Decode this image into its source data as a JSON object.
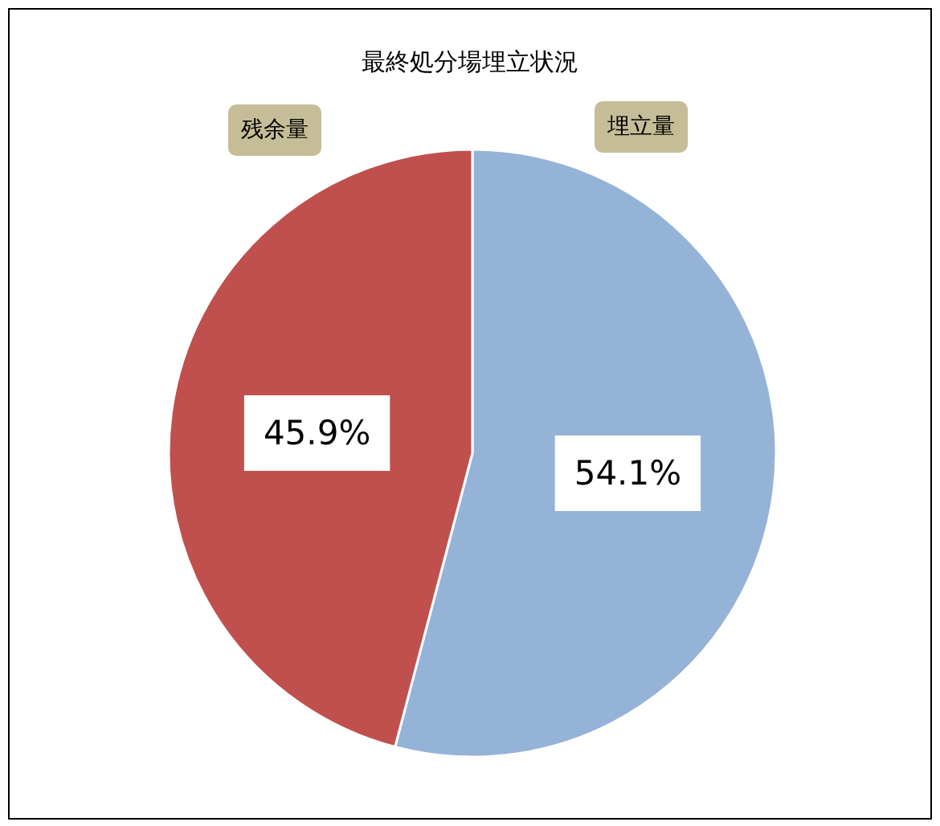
{
  "chart_data": {
    "type": "pie",
    "title": "最終処分場埋立状況",
    "categories": [
      "埋立量",
      "残余量"
    ],
    "values": [
      54.1,
      45.9
    ],
    "colors": [
      "#95b3d7",
      "#c0504d"
    ],
    "value_labels": [
      "54.1%",
      "45.9%"
    ],
    "legend": false
  }
}
